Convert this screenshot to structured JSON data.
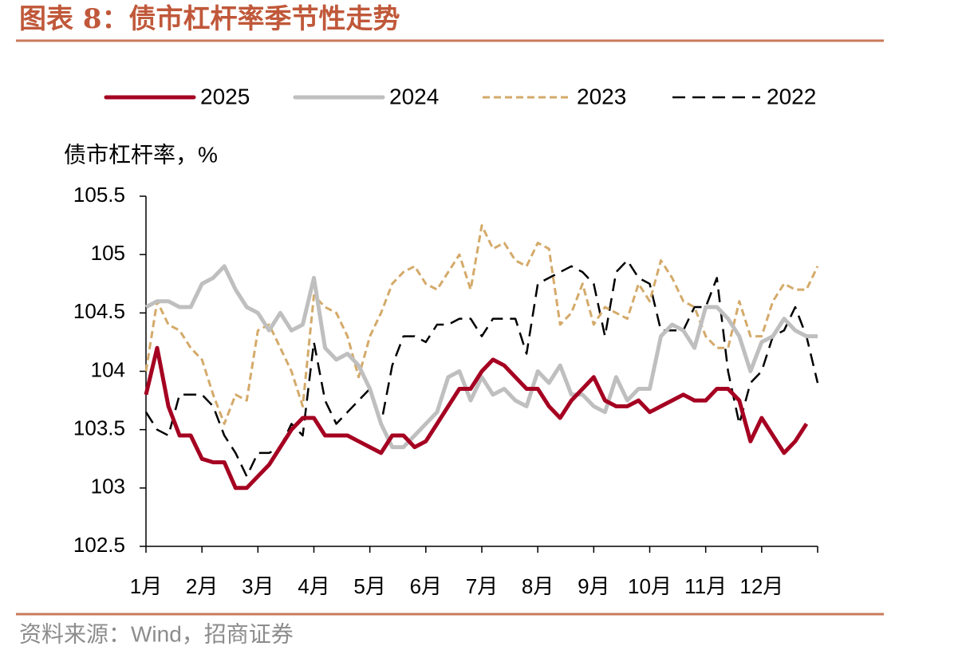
{
  "chart_data": {
    "type": "line",
    "title": "图表 8：债市杠杆率季节性走势",
    "y_label": "债市杠杆率，%",
    "source": "资料来源：Wind，招商证券",
    "x": [
      0,
      0.2,
      0.4,
      0.6,
      0.8,
      1,
      1.2,
      1.4,
      1.6,
      1.8,
      2,
      2.2,
      2.4,
      2.6,
      2.8,
      3,
      3.2,
      3.4,
      3.6,
      3.8,
      4,
      4.2,
      4.4,
      4.6,
      4.8,
      5,
      5.2,
      5.4,
      5.6,
      5.8,
      6,
      6.2,
      6.4,
      6.6,
      6.8,
      7,
      7.2,
      7.4,
      7.6,
      7.8,
      8,
      8.2,
      8.4,
      8.6,
      8.8,
      9,
      9.2,
      9.4,
      9.6,
      9.8,
      10,
      10.2,
      10.4,
      10.6,
      10.8,
      11,
      11.2,
      11.4,
      11.6,
      11.8,
      12
    ],
    "xlim": [
      0,
      12
    ],
    "xticks": [
      {
        "value": 0,
        "label": "1月"
      },
      {
        "value": 1,
        "label": "2月"
      },
      {
        "value": 2,
        "label": "3月"
      },
      {
        "value": 3,
        "label": "4月"
      },
      {
        "value": 4,
        "label": "5月"
      },
      {
        "value": 5,
        "label": "6月"
      },
      {
        "value": 6,
        "label": "7月"
      },
      {
        "value": 7,
        "label": "8月"
      },
      {
        "value": 8,
        "label": "9月"
      },
      {
        "value": 9,
        "label": "10月"
      },
      {
        "value": 10,
        "label": "11月"
      },
      {
        "value": 11,
        "label": "12月"
      }
    ],
    "ylim": [
      102.5,
      105.5
    ],
    "yticks": [
      102.5,
      103,
      103.5,
      104,
      104.5,
      105,
      105.5
    ],
    "legend": "top",
    "series": [
      {
        "name": "2025",
        "color": "#a50021",
        "line_style": "solid",
        "values": [
          103.8,
          104.2,
          103.7,
          103.45,
          103.45,
          103.25,
          103.22,
          103.22,
          103.0,
          103.0,
          103.1,
          103.2,
          103.35,
          103.5,
          103.6,
          103.6,
          103.45,
          103.45,
          103.45,
          103.4,
          103.35,
          103.3,
          103.45,
          103.45,
          103.35,
          103.4,
          103.55,
          103.7,
          103.85,
          103.85,
          104.0,
          104.1,
          104.05,
          103.95,
          103.85,
          103.85,
          103.7,
          103.6,
          103.75,
          103.85,
          103.95,
          103.75,
          103.7,
          103.7,
          103.75,
          103.65,
          103.7,
          103.75,
          103.8,
          103.75,
          103.75,
          103.85,
          103.85,
          103.75,
          103.4,
          103.6,
          103.45,
          103.3,
          103.4,
          103.55,
          null
        ]
      },
      {
        "name": "2024",
        "color": "#bfbfbf",
        "line_style": "solid",
        "values": [
          104.55,
          104.6,
          104.6,
          104.55,
          104.55,
          104.75,
          104.8,
          104.9,
          104.7,
          104.55,
          104.5,
          104.35,
          104.5,
          104.35,
          104.4,
          104.8,
          104.2,
          104.1,
          104.15,
          104.05,
          103.85,
          103.55,
          103.35,
          103.35,
          103.45,
          103.55,
          103.65,
          103.95,
          104.0,
          103.75,
          103.95,
          103.8,
          103.85,
          103.75,
          103.7,
          104.0,
          103.9,
          104.05,
          103.8,
          103.8,
          103.7,
          103.65,
          103.95,
          103.75,
          103.85,
          103.85,
          104.3,
          104.4,
          104.35,
          104.2,
          104.55,
          104.55,
          104.45,
          104.3,
          104.0,
          104.25,
          104.3,
          104.45,
          104.35,
          104.3,
          104.3
        ]
      },
      {
        "name": "2023",
        "color": "#d4aa6a",
        "line_style": "short-dash",
        "values": [
          104.0,
          104.6,
          104.4,
          104.35,
          104.2,
          104.1,
          103.8,
          103.55,
          103.8,
          103.75,
          104.35,
          104.4,
          104.2,
          104.0,
          103.7,
          104.65,
          104.55,
          104.5,
          104.3,
          103.95,
          104.3,
          104.5,
          104.75,
          104.85,
          104.9,
          104.75,
          104.7,
          104.85,
          105.0,
          104.7,
          105.25,
          105.05,
          105.1,
          104.95,
          104.9,
          105.1,
          105.05,
          104.4,
          104.5,
          104.75,
          104.4,
          104.55,
          104.5,
          104.45,
          104.75,
          104.6,
          104.95,
          104.8,
          104.6,
          104.55,
          104.3,
          104.2,
          104.2,
          104.6,
          104.3,
          104.3,
          104.6,
          104.75,
          104.7,
          104.7,
          104.9
        ]
      },
      {
        "name": "2022",
        "color": "#000000",
        "line_style": "long-dash",
        "values": [
          103.65,
          103.5,
          103.45,
          103.8,
          103.8,
          103.8,
          103.7,
          103.45,
          103.3,
          103.1,
          103.3,
          103.3,
          103.35,
          103.55,
          103.45,
          104.25,
          103.75,
          103.55,
          103.65,
          103.75,
          103.85,
          103.55,
          104.05,
          104.3,
          104.3,
          104.25,
          104.4,
          104.4,
          104.45,
          104.45,
          104.3,
          104.45,
          104.45,
          104.45,
          104.15,
          104.75,
          104.8,
          104.85,
          104.9,
          104.85,
          104.75,
          104.3,
          104.85,
          104.95,
          104.8,
          104.75,
          104.35,
          104.35,
          104.35,
          104.55,
          104.55,
          104.8,
          104.0,
          103.55,
          103.9,
          104.0,
          104.3,
          104.35,
          104.55,
          104.3,
          103.9
        ]
      }
    ]
  }
}
